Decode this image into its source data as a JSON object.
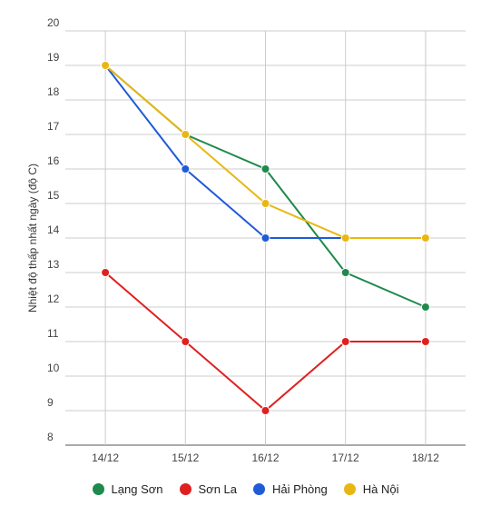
{
  "chart_data": {
    "type": "line",
    "categories": [
      "14/12",
      "15/12",
      "16/12",
      "17/12",
      "18/12"
    ],
    "ylabel": "Nhiệt độ thấp nhất ngày (độ C)",
    "xlabel": "",
    "title": "",
    "ylim": [
      8,
      20
    ],
    "yticks": [
      8,
      9,
      10,
      11,
      12,
      13,
      14,
      15,
      16,
      17,
      18,
      19,
      20
    ],
    "grid": true,
    "legend_position": "bottom",
    "series": [
      {
        "name": "Lạng Sơn",
        "color": "#1e8a4c",
        "values": [
          19,
          17,
          16,
          13,
          12
        ]
      },
      {
        "name": "Sơn La",
        "color": "#e02020",
        "values": [
          13,
          11,
          9,
          11,
          11
        ]
      },
      {
        "name": "Hải Phòng",
        "color": "#1f5bd6",
        "values": [
          19,
          16,
          14,
          14,
          null
        ]
      },
      {
        "name": "Hà Nội",
        "color": "#e9b713",
        "values": [
          19,
          17,
          15,
          14,
          14
        ]
      }
    ]
  }
}
